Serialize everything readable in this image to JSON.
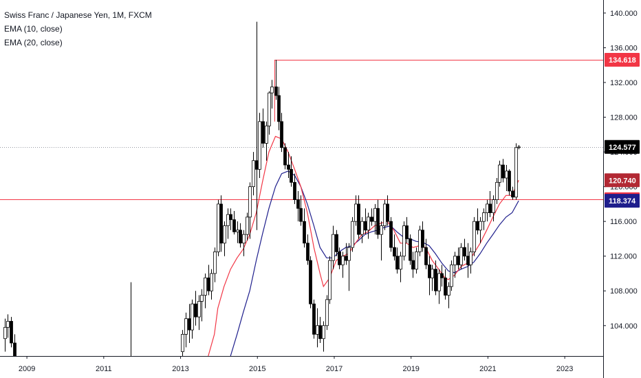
{
  "legend": {
    "symbol": "Swiss Franc / Japanese Yen, 1M, FXCM",
    "ema1": "EMA (10, close)",
    "ema2": "EMA (20, close)"
  },
  "chart_data": {
    "type": "candlestick",
    "ylim": [
      100.5,
      141.5
    ],
    "y_ticks": [
      "104.000",
      "108.000",
      "112.000",
      "116.000",
      "120.000",
      "124.000",
      "128.000",
      "132.000",
      "136.000",
      "140.000"
    ],
    "y_tick_values": [
      104,
      108,
      112,
      116,
      120,
      124,
      128,
      132,
      136,
      140
    ],
    "x_ticks": [
      "2009",
      "2011",
      "2013",
      "2015",
      "2017",
      "2019",
      "2021",
      "2023"
    ],
    "x_tick_values": [
      2009,
      2011,
      2013,
      2015,
      2017,
      2019,
      2021,
      2023
    ],
    "xlim": [
      2008.3,
      2024.0
    ],
    "price_tags": [
      {
        "value": 134.618,
        "label": "134.618",
        "color": "#f23645",
        "kind": "resistance"
      },
      {
        "value": 124.577,
        "label": "124.577",
        "color": "#000000",
        "kind": "last-price"
      },
      {
        "value": 120.74,
        "label": "120.740",
        "color": "#b22833",
        "kind": "ema10"
      },
      {
        "value": 118.557,
        "label": "118.557",
        "color": "#f23645",
        "kind": "support"
      },
      {
        "value": 118.374,
        "label": "118.374",
        "color": "#1e1e8c",
        "kind": "ema20"
      }
    ],
    "horizontal_lines": [
      {
        "value": 134.618,
        "from": 2015.45,
        "color": "#f23645"
      },
      {
        "value": 118.557,
        "from": 2008.3,
        "color": "#f23645"
      },
      {
        "value": 124.577,
        "from": 2008.3,
        "color": "#9598a1",
        "dotted": true
      }
    ],
    "colors": {
      "up": "#ffffff",
      "down": "#000000",
      "wick": "#000000",
      "ema10": "#f23645",
      "ema20": "#1e1e8c"
    },
    "candles_note": "monthly OHLC estimated",
    "candles": [
      [
        2008.42,
        102.5,
        104.8,
        101.0,
        103.8
      ],
      [
        2008.5,
        103.8,
        105.3,
        102.6,
        104.5
      ],
      [
        2008.58,
        104.5,
        105.0,
        101.5,
        102.0
      ],
      [
        2008.67,
        102.0,
        103.0,
        100.0,
        100.5
      ],
      [
        2011.7,
        100.0,
        109.0,
        100.0,
        100.2
      ],
      [
        2013.05,
        101.0,
        103.5,
        100.0,
        103.0
      ],
      [
        2013.13,
        103.0,
        105.5,
        101.5,
        104.8
      ],
      [
        2013.22,
        104.8,
        106.5,
        102.0,
        103.5
      ],
      [
        2013.3,
        103.5,
        107.0,
        102.5,
        106.5
      ],
      [
        2013.38,
        106.5,
        108.0,
        104.0,
        105.0
      ],
      [
        2013.47,
        105.0,
        107.5,
        103.5,
        106.8
      ],
      [
        2013.55,
        106.8,
        108.2,
        104.5,
        107.5
      ],
      [
        2013.63,
        107.5,
        110.0,
        106.0,
        109.5
      ],
      [
        2013.72,
        109.5,
        111.0,
        107.5,
        108.0
      ],
      [
        2013.8,
        108.0,
        110.5,
        107.0,
        110.0
      ],
      [
        2013.88,
        110.0,
        113.0,
        109.0,
        112.5
      ],
      [
        2013.97,
        112.5,
        118.5,
        112.0,
        118.0
      ],
      [
        2014.05,
        118.0,
        119.0,
        112.5,
        113.5
      ],
      [
        2014.13,
        113.5,
        116.0,
        112.0,
        115.5
      ],
      [
        2014.22,
        115.5,
        117.5,
        114.0,
        116.8
      ],
      [
        2014.3,
        116.8,
        117.5,
        115.0,
        116.2
      ],
      [
        2014.38,
        116.2,
        117.2,
        114.5,
        114.8
      ],
      [
        2014.47,
        114.8,
        116.0,
        113.5,
        115.0
      ],
      [
        2014.55,
        115.0,
        115.8,
        113.0,
        113.5
      ],
      [
        2014.63,
        113.5,
        115.0,
        112.0,
        114.5
      ],
      [
        2014.72,
        114.5,
        117.0,
        113.8,
        116.5
      ],
      [
        2014.8,
        116.5,
        120.5,
        114.0,
        120.0
      ],
      [
        2014.88,
        120.0,
        124.0,
        119.0,
        123.0
      ],
      [
        2014.97,
        123.0,
        139.0,
        115.0,
        122.0
      ],
      [
        2015.05,
        122.0,
        128.5,
        121.0,
        127.5
      ],
      [
        2015.13,
        127.5,
        129.0,
        124.5,
        125.0
      ],
      [
        2015.22,
        125.0,
        127.5,
        123.0,
        127.0
      ],
      [
        2015.3,
        127.0,
        131.0,
        126.0,
        130.8
      ],
      [
        2015.38,
        130.8,
        132.3,
        129.0,
        131.5
      ],
      [
        2015.47,
        131.5,
        134.6,
        130.0,
        130.5
      ],
      [
        2015.55,
        130.5,
        131.5,
        126.5,
        127.5
      ],
      [
        2015.63,
        127.5,
        128.5,
        124.0,
        124.5
      ],
      [
        2015.72,
        124.5,
        125.0,
        122.0,
        122.5
      ],
      [
        2015.8,
        122.5,
        124.0,
        121.0,
        122.0
      ],
      [
        2015.88,
        122.0,
        123.5,
        120.0,
        120.5
      ],
      [
        2015.97,
        120.5,
        121.5,
        118.0,
        118.5
      ],
      [
        2016.05,
        118.5,
        119.5,
        116.0,
        117.5
      ],
      [
        2016.13,
        117.5,
        119.0,
        115.5,
        116.0
      ],
      [
        2016.22,
        116.0,
        117.5,
        113.0,
        113.5
      ],
      [
        2016.3,
        113.5,
        114.5,
        111.0,
        111.5
      ],
      [
        2016.38,
        111.5,
        112.0,
        106.0,
        106.5
      ],
      [
        2016.47,
        106.5,
        107.0,
        102.5,
        103.0
      ],
      [
        2016.55,
        103.0,
        106.0,
        101.5,
        104.0
      ],
      [
        2016.63,
        104.0,
        105.0,
        102.0,
        102.5
      ],
      [
        2016.72,
        102.5,
        104.5,
        101.0,
        104.0
      ],
      [
        2016.8,
        104.0,
        107.5,
        103.5,
        107.0
      ],
      [
        2016.88,
        107.0,
        112.0,
        106.5,
        111.5
      ],
      [
        2016.97,
        111.5,
        115.5,
        110.5,
        114.5
      ],
      [
        2017.05,
        114.5,
        115.0,
        112.0,
        112.5
      ],
      [
        2017.13,
        112.5,
        113.0,
        110.5,
        111.0
      ],
      [
        2017.22,
        111.0,
        112.5,
        109.5,
        112.0
      ],
      [
        2017.3,
        112.0,
        113.5,
        111.0,
        111.5
      ],
      [
        2017.38,
        111.5,
        113.5,
        108.0,
        113.0
      ],
      [
        2017.47,
        113.0,
        116.5,
        112.5,
        116.0
      ],
      [
        2017.55,
        116.0,
        119.0,
        115.5,
        118.0
      ],
      [
        2017.63,
        118.0,
        119.0,
        114.0,
        114.5
      ],
      [
        2017.72,
        114.5,
        116.5,
        113.5,
        116.0
      ],
      [
        2017.8,
        116.0,
        117.5,
        114.5,
        115.0
      ],
      [
        2017.88,
        115.0,
        117.0,
        114.0,
        116.5
      ],
      [
        2017.97,
        116.5,
        117.5,
        115.5,
        116.0
      ],
      [
        2018.05,
        116.0,
        118.0,
        114.5,
        117.5
      ],
      [
        2018.13,
        117.5,
        118.5,
        114.0,
        114.5
      ],
      [
        2018.22,
        114.5,
        116.0,
        111.5,
        115.5
      ],
      [
        2018.3,
        115.5,
        118.5,
        115.0,
        118.0
      ],
      [
        2018.38,
        118.0,
        119.0,
        115.5,
        116.0
      ],
      [
        2018.47,
        116.0,
        116.5,
        112.5,
        113.0
      ],
      [
        2018.55,
        113.0,
        114.5,
        111.5,
        112.0
      ],
      [
        2018.63,
        112.0,
        113.0,
        110.0,
        110.5
      ],
      [
        2018.72,
        110.5,
        112.5,
        109.0,
        112.0
      ],
      [
        2018.8,
        112.0,
        116.0,
        111.5,
        115.5
      ],
      [
        2018.88,
        115.5,
        116.5,
        113.5,
        114.0
      ],
      [
        2018.97,
        114.0,
        114.5,
        111.0,
        111.5
      ],
      [
        2019.05,
        111.5,
        112.5,
        109.5,
        110.5
      ],
      [
        2019.13,
        110.5,
        113.0,
        110.0,
        112.5
      ],
      [
        2019.22,
        112.5,
        115.5,
        112.0,
        115.0
      ],
      [
        2019.3,
        115.0,
        116.0,
        112.5,
        113.0
      ],
      [
        2019.38,
        113.0,
        114.0,
        110.5,
        111.0
      ],
      [
        2019.47,
        111.0,
        112.0,
        107.5,
        109.5
      ],
      [
        2019.55,
        109.5,
        111.0,
        108.0,
        110.5
      ],
      [
        2019.63,
        110.5,
        111.5,
        107.5,
        108.0
      ],
      [
        2019.72,
        108.0,
        110.5,
        106.5,
        110.0
      ],
      [
        2019.8,
        110.0,
        111.0,
        108.5,
        109.5
      ],
      [
        2019.88,
        109.5,
        110.5,
        107.0,
        107.5
      ],
      [
        2019.97,
        107.5,
        109.0,
        106.0,
        108.5
      ],
      [
        2020.05,
        108.5,
        111.5,
        108.0,
        111.0
      ],
      [
        2020.13,
        111.0,
        112.5,
        109.5,
        112.0
      ],
      [
        2020.22,
        112.0,
        113.0,
        110.5,
        111.0
      ],
      [
        2020.3,
        111.0,
        113.5,
        110.5,
        113.0
      ],
      [
        2020.38,
        113.0,
        114.0,
        111.5,
        112.0
      ],
      [
        2020.47,
        112.0,
        113.5,
        109.5,
        111.0
      ],
      [
        2020.55,
        111.0,
        113.0,
        110.0,
        112.5
      ],
      [
        2020.63,
        112.5,
        116.5,
        112.0,
        116.0
      ],
      [
        2020.72,
        116.0,
        117.5,
        114.5,
        115.0
      ],
      [
        2020.8,
        115.0,
        116.5,
        113.5,
        116.0
      ],
      [
        2020.88,
        116.0,
        117.5,
        115.0,
        117.0
      ],
      [
        2020.97,
        117.0,
        118.5,
        116.0,
        118.0
      ],
      [
        2021.05,
        118.0,
        119.5,
        116.5,
        117.0
      ],
      [
        2021.13,
        117.0,
        119.0,
        116.0,
        118.5
      ],
      [
        2021.22,
        118.5,
        121.0,
        118.0,
        120.5
      ],
      [
        2021.3,
        120.5,
        123.0,
        120.0,
        122.5
      ],
      [
        2021.38,
        122.5,
        123.2,
        120.5,
        121.0
      ],
      [
        2021.47,
        121.0,
        122.5,
        119.5,
        121.8
      ],
      [
        2021.55,
        121.8,
        122.0,
        119.0,
        119.5
      ],
      [
        2021.63,
        119.5,
        120.0,
        118.5,
        118.8
      ],
      [
        2021.72,
        118.8,
        125.0,
        118.5,
        124.5
      ],
      [
        2021.8,
        124.5,
        124.8,
        124.3,
        124.577
      ]
    ],
    "ema10_line": [
      [
        2013.72,
        100.5
      ],
      [
        2013.88,
        103.0
      ],
      [
        2013.97,
        106.0
      ],
      [
        2014.13,
        108.5
      ],
      [
        2014.3,
        110.5
      ],
      [
        2014.47,
        111.8
      ],
      [
        2014.63,
        112.8
      ],
      [
        2014.8,
        114.5
      ],
      [
        2014.97,
        117.0
      ],
      [
        2015.13,
        120.5
      ],
      [
        2015.3,
        124.0
      ],
      [
        2015.47,
        125.8
      ],
      [
        2015.63,
        125.5
      ],
      [
        2015.8,
        124.0
      ],
      [
        2015.97,
        122.0
      ],
      [
        2016.13,
        120.0
      ],
      [
        2016.3,
        117.0
      ],
      [
        2016.47,
        113.0
      ],
      [
        2016.63,
        110.0
      ],
      [
        2016.72,
        108.5
      ],
      [
        2016.88,
        109.5
      ],
      [
        2017.05,
        111.5
      ],
      [
        2017.22,
        112.0
      ],
      [
        2017.38,
        112.3
      ],
      [
        2017.55,
        113.5
      ],
      [
        2017.72,
        114.5
      ],
      [
        2017.88,
        114.8
      ],
      [
        2018.05,
        115.5
      ],
      [
        2018.22,
        115.8
      ],
      [
        2018.38,
        116.0
      ],
      [
        2018.55,
        115.0
      ],
      [
        2018.72,
        113.5
      ],
      [
        2018.88,
        113.5
      ],
      [
        2019.05,
        113.0
      ],
      [
        2019.22,
        113.2
      ],
      [
        2019.38,
        113.0
      ],
      [
        2019.55,
        111.5
      ],
      [
        2019.72,
        110.5
      ],
      [
        2019.88,
        109.5
      ],
      [
        2019.97,
        109.3
      ],
      [
        2020.13,
        109.8
      ],
      [
        2020.3,
        110.8
      ],
      [
        2020.47,
        111.2
      ],
      [
        2020.63,
        112.3
      ],
      [
        2020.8,
        113.5
      ],
      [
        2020.97,
        115.0
      ],
      [
        2021.13,
        116.5
      ],
      [
        2021.3,
        118.0
      ],
      [
        2021.47,
        119.0
      ],
      [
        2021.63,
        119.0
      ],
      [
        2021.8,
        120.74
      ]
    ],
    "ema20_line": [
      [
        2014.3,
        100.5
      ],
      [
        2014.47,
        103.0
      ],
      [
        2014.63,
        105.5
      ],
      [
        2014.8,
        108.0
      ],
      [
        2014.97,
        111.5
      ],
      [
        2015.13,
        114.5
      ],
      [
        2015.3,
        117.5
      ],
      [
        2015.47,
        120.0
      ],
      [
        2015.63,
        121.5
      ],
      [
        2015.8,
        121.8
      ],
      [
        2015.97,
        121.3
      ],
      [
        2016.13,
        120.0
      ],
      [
        2016.3,
        118.0
      ],
      [
        2016.47,
        115.5
      ],
      [
        2016.63,
        113.0
      ],
      [
        2016.8,
        111.8
      ],
      [
        2016.97,
        111.8
      ],
      [
        2017.13,
        112.5
      ],
      [
        2017.3,
        113.0
      ],
      [
        2017.47,
        113.2
      ],
      [
        2017.63,
        113.8
      ],
      [
        2017.8,
        114.5
      ],
      [
        2017.97,
        114.8
      ],
      [
        2018.13,
        115.0
      ],
      [
        2018.3,
        115.3
      ],
      [
        2018.47,
        115.5
      ],
      [
        2018.63,
        114.8
      ],
      [
        2018.8,
        114.2
      ],
      [
        2018.97,
        114.0
      ],
      [
        2019.13,
        113.7
      ],
      [
        2019.3,
        113.6
      ],
      [
        2019.47,
        113.2
      ],
      [
        2019.63,
        112.3
      ],
      [
        2019.8,
        111.2
      ],
      [
        2019.97,
        110.3
      ],
      [
        2020.13,
        110.1
      ],
      [
        2020.3,
        110.5
      ],
      [
        2020.47,
        110.8
      ],
      [
        2020.63,
        111.3
      ],
      [
        2020.8,
        112.3
      ],
      [
        2020.97,
        113.5
      ],
      [
        2021.13,
        114.5
      ],
      [
        2021.3,
        115.6
      ],
      [
        2021.47,
        116.5
      ],
      [
        2021.63,
        117.0
      ],
      [
        2021.8,
        118.374
      ]
    ]
  }
}
